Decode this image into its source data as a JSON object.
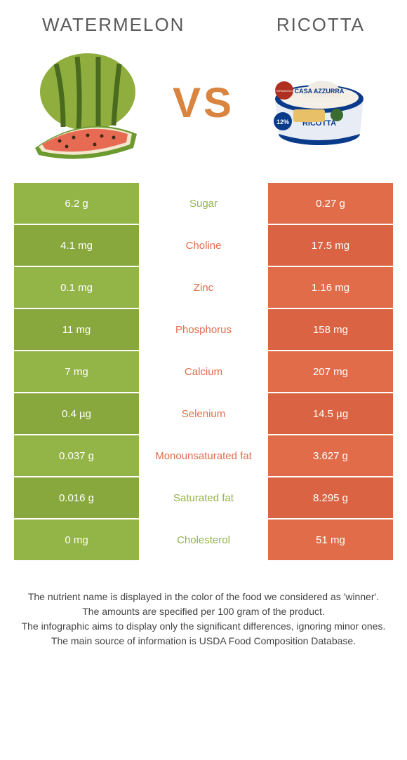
{
  "foodA": {
    "title": "WATERMELON",
    "color": "#93b447",
    "altColor": "#88a83e"
  },
  "foodB": {
    "title": "RICOTTA",
    "color": "#e16c4a",
    "altColor": "#d96342"
  },
  "vs": "VS",
  "midTextColor_winnerA": "#93b447",
  "midTextColor_winnerB": "#e16c4a",
  "rows": [
    {
      "nutrient": "Sugar",
      "a": "6.2 g",
      "b": "0.27 g",
      "winner": "A"
    },
    {
      "nutrient": "Choline",
      "a": "4.1 mg",
      "b": "17.5 mg",
      "winner": "B"
    },
    {
      "nutrient": "Zinc",
      "a": "0.1 mg",
      "b": "1.16 mg",
      "winner": "B"
    },
    {
      "nutrient": "Phosphorus",
      "a": "11 mg",
      "b": "158 mg",
      "winner": "B"
    },
    {
      "nutrient": "Calcium",
      "a": "7 mg",
      "b": "207 mg",
      "winner": "B"
    },
    {
      "nutrient": "Selenium",
      "a": "0.4 µg",
      "b": "14.5 µg",
      "winner": "B"
    },
    {
      "nutrient": "Monounsaturated fat",
      "a": "0.037 g",
      "b": "3.627 g",
      "winner": "B"
    },
    {
      "nutrient": "Saturated fat",
      "a": "0.016 g",
      "b": "8.295 g",
      "winner": "A"
    },
    {
      "nutrient": "Cholesterol",
      "a": "0 mg",
      "b": "51 mg",
      "winner": "A"
    }
  ],
  "footer": {
    "l1": "The nutrient name is displayed in the color of the food we considered as 'winner'.",
    "l2": "The amounts are specified per 100 gram of the product.",
    "l3": "The infographic aims to display only the significant differences, ignoring minor ones.",
    "l4": "The main source of information is USDA Food Composition Database."
  },
  "ricottaPackage": {
    "brand": "CASA AZZURRA",
    "tagline": "Gusto e leggerezza",
    "product": "RICOTTA",
    "badge": "12%",
    "sealLine1": "VERO",
    "sealLine2": "FORMAGGIO",
    "sealLine3": "ITALIANO"
  }
}
